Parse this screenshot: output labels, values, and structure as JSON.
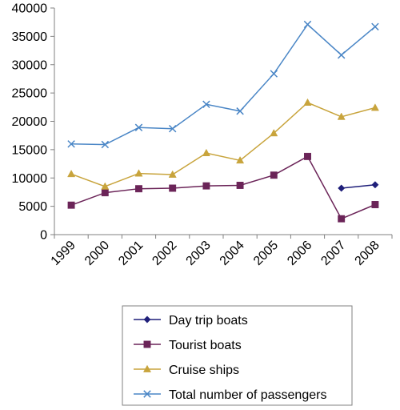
{
  "chart_data": {
    "type": "line",
    "title": "",
    "xlabel": "",
    "ylabel": "",
    "categories": [
      "1999",
      "2000",
      "2001",
      "2002",
      "2003",
      "2004",
      "2005",
      "2006",
      "2007",
      "2008"
    ],
    "ylim": [
      0,
      40000
    ],
    "yticks": [
      "0",
      "5000",
      "10000",
      "15000",
      "20000",
      "25000",
      "30000",
      "35000",
      "40000"
    ],
    "grid": false,
    "legend_position": "bottom",
    "series": [
      {
        "name": "Day trip boats",
        "color": "#1f1f7a",
        "marker": "diamond",
        "values": [
          null,
          null,
          null,
          null,
          null,
          null,
          null,
          null,
          8200,
          8800
        ]
      },
      {
        "name": "Tourist boats",
        "color": "#6b2458",
        "marker": "square",
        "values": [
          5200,
          7400,
          8100,
          8200,
          8600,
          8700,
          10500,
          13800,
          2800,
          5300
        ]
      },
      {
        "name": "Cruise ships",
        "color": "#c8a43c",
        "marker": "triangle",
        "values": [
          10700,
          8500,
          10800,
          10600,
          14400,
          13100,
          17900,
          23300,
          20800,
          22400
        ]
      },
      {
        "name": "Total number of passengers",
        "color": "#4a86c6",
        "marker": "x",
        "values": [
          16000,
          15900,
          18900,
          18700,
          23000,
          21800,
          28400,
          37100,
          31700,
          36700
        ]
      }
    ]
  }
}
